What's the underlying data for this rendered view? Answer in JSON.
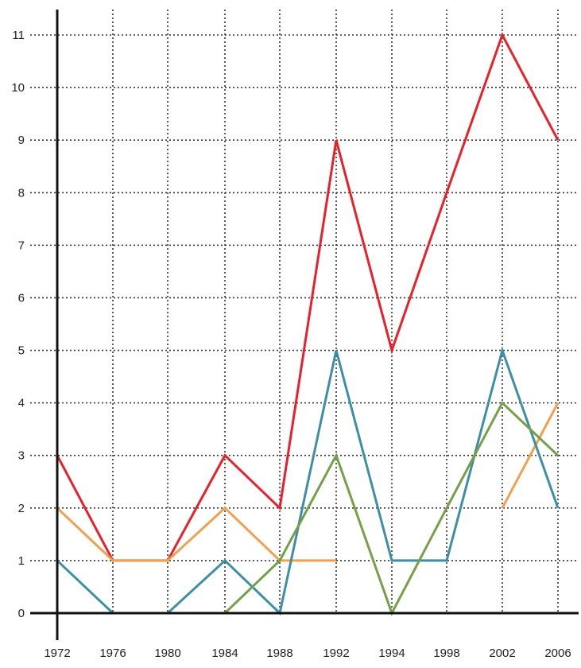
{
  "chart_data": {
    "type": "line",
    "title": "",
    "xlabel": "",
    "ylabel": "",
    "categories": [
      "1972",
      "1976",
      "1980",
      "1984",
      "1988",
      "1992",
      "1994",
      "1998",
      "2002",
      "2006"
    ],
    "ylim": [
      0,
      11
    ],
    "yticks": [
      0,
      1,
      2,
      3,
      4,
      5,
      6,
      7,
      8,
      9,
      10,
      11
    ],
    "grid": true,
    "grid_style": "dotted",
    "legend": "none",
    "series": [
      {
        "color": "#e8202a",
        "values": [
          3,
          1,
          1,
          3,
          2,
          9,
          5,
          8,
          11,
          9
        ]
      },
      {
        "color": "#f0a050",
        "values": [
          2,
          1,
          1,
          2,
          1,
          1,
          null,
          null,
          2,
          4
        ]
      },
      {
        "color": "#3f8ea8",
        "values": [
          1,
          0,
          0,
          1,
          0,
          5,
          1,
          1,
          5,
          2
        ]
      },
      {
        "color": "#76a048",
        "values": [
          0,
          0,
          0,
          0,
          1,
          3,
          0,
          2,
          4,
          3
        ]
      }
    ]
  }
}
